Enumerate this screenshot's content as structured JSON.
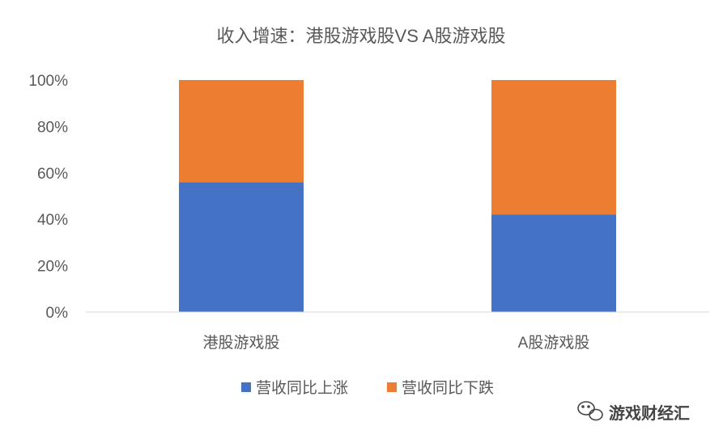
{
  "chart_data": {
    "type": "bar",
    "stacked": true,
    "percent": true,
    "title": "收入增速：港股游戏股VS A股游戏股",
    "categories": [
      "港股游戏股",
      "A股游戏股"
    ],
    "series": [
      {
        "name": "营收同比上涨",
        "color": "#4472C4",
        "values": [
          56,
          42
        ]
      },
      {
        "name": "营收同比下跌",
        "color": "#ED7D31",
        "values": [
          44,
          58
        ]
      }
    ],
    "ylim": [
      0,
      100
    ],
    "yticks": [
      "0%",
      "20%",
      "40%",
      "60%",
      "80%",
      "100%"
    ],
    "grid": false,
    "legend_position": "bottom"
  },
  "watermark": {
    "label": "游戏财经汇",
    "icon": "wechat-icon"
  }
}
